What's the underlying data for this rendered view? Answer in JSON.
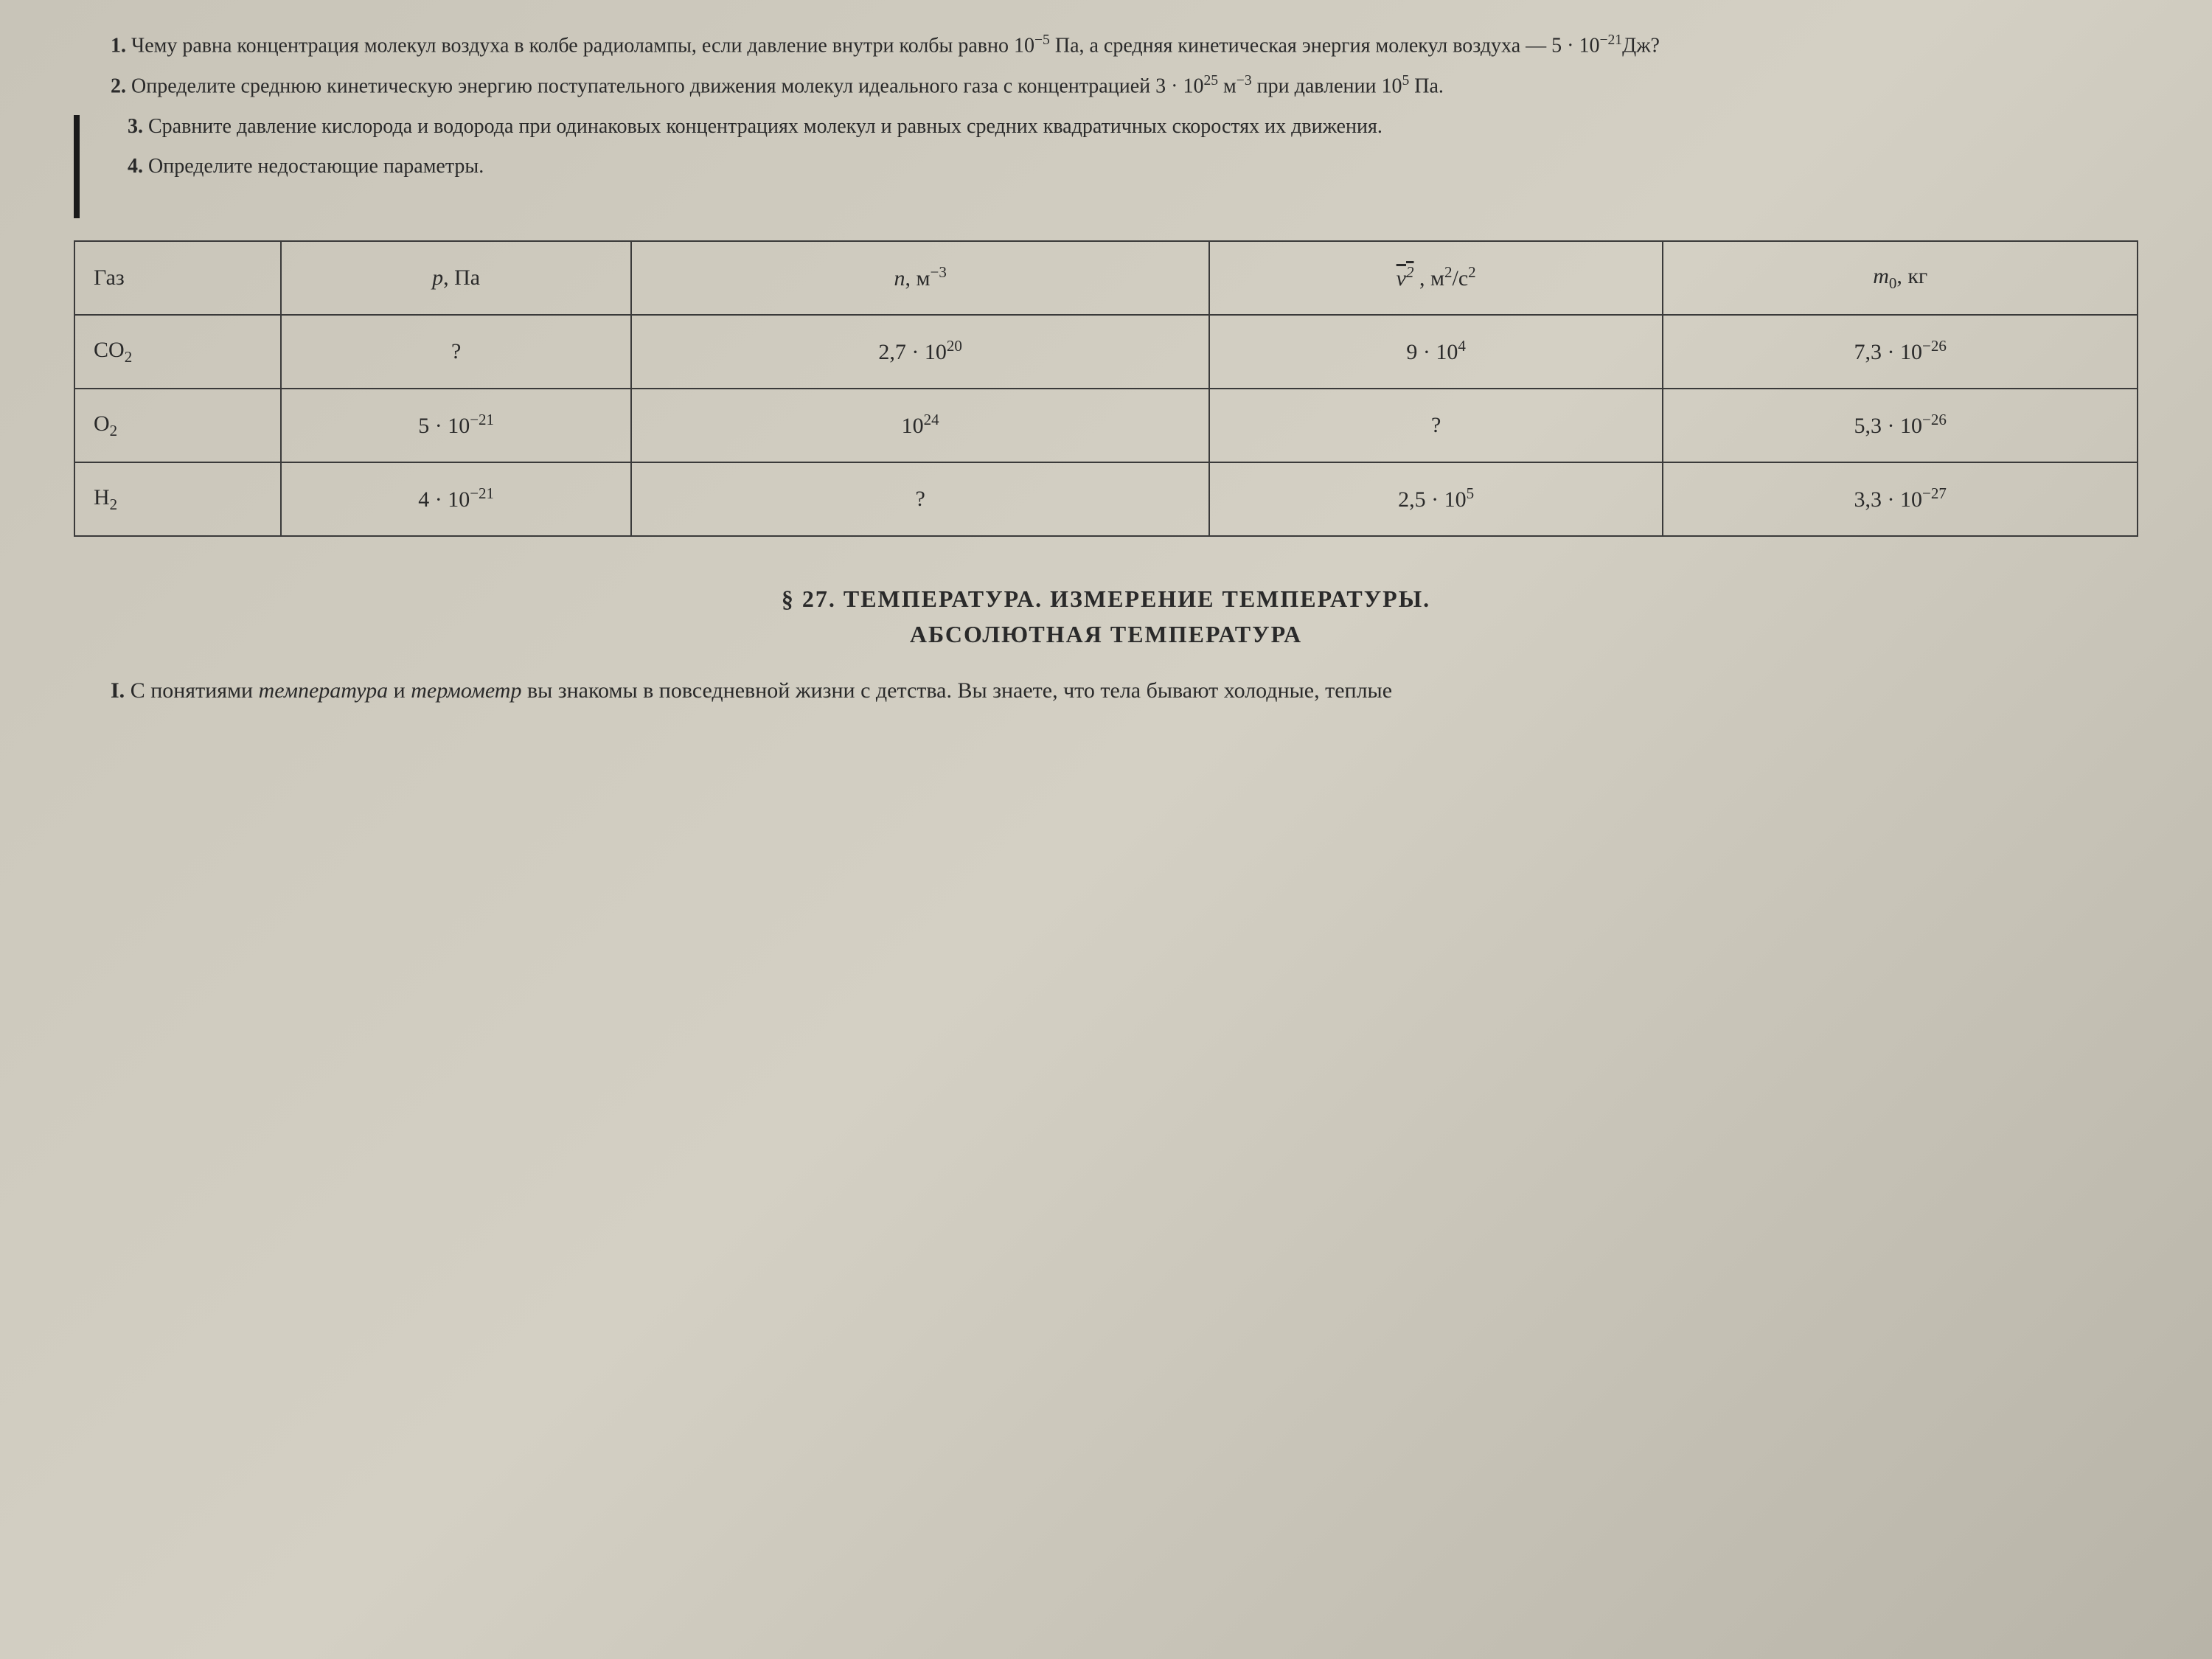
{
  "problems": {
    "p1": {
      "number": "1.",
      "text_before": "Чему равна концентрация молекул воздуха в колбе радиолампы, если давление внутри колбы равно 10",
      "exp1": "−5",
      "text_mid1": " Па, а средняя кинетическая энергия молекул воздуха — 5 · 10",
      "exp2": "−21",
      "text_after": "Дж?"
    },
    "p2": {
      "number": "2.",
      "text_before": "Определите среднюю кинетическую энергию поступательного движения молекул идеального газа с концентрацией 3 · 10",
      "exp1": "25",
      "text_mid": " м",
      "exp2": "−3",
      "text_mid2": " при давлении 10",
      "exp3": "5",
      "text_after": " Па."
    },
    "p3": {
      "number": "3.",
      "text": "Сравните давление кислорода и водорода при одинаковых концентрациях молекул и равных средних квадратичных скоростях их движения."
    },
    "p4": {
      "number": "4.",
      "text": "Определите недостающие параметры."
    }
  },
  "table": {
    "headers": {
      "gas": "Газ",
      "p_label": "p",
      "p_unit": ", Па",
      "n_label": "n",
      "n_unit": ", м",
      "n_exp": "−3",
      "v_label": "v",
      "v_sup": "2",
      "v_unit": " , м",
      "v_sup2": "2",
      "v_unit2": "/с",
      "v_sup3": "2",
      "m_label": "m",
      "m_sub": "0",
      "m_unit": ", кг"
    },
    "rows": [
      {
        "gas": "CO",
        "gas_sub": "2",
        "p": "?",
        "n_base": "2,7 · 10",
        "n_exp": "20",
        "v_base": "9 · 10",
        "v_exp": "4",
        "m_base": "7,3 · 10",
        "m_exp": "−26"
      },
      {
        "gas": "O",
        "gas_sub": "2",
        "p_base": "5 · 10",
        "p_exp": "−21",
        "n_base": "10",
        "n_exp": "24",
        "v": "?",
        "m_base": "5,3 · 10",
        "m_exp": "−26"
      },
      {
        "gas": "H",
        "gas_sub": "2",
        "p_base": "4 · 10",
        "p_exp": "−21",
        "n": "?",
        "v_base": "2,5 · 10",
        "v_exp": "5",
        "m_base": "3,3 · 10",
        "m_exp": "−27"
      }
    ]
  },
  "section": {
    "prefix": "§ 27.",
    "title_line1": "ТЕМПЕРАТУРА. ИЗМЕРЕНИЕ ТЕМПЕРАТУРЫ.",
    "title_line2": "АБСОЛЮТНАЯ ТЕМПЕРАТУРА"
  },
  "body": {
    "number": "I.",
    "text_before": "С понятиями ",
    "italic1": "температура",
    "text_mid1": " и ",
    "italic2": "термометр",
    "text_mid2": " вы знакомы в повсе­дневной жизни с детства. Вы знаете, что тела бывают холодные, теплые",
    "text_fragment": "температура"
  },
  "colors": {
    "text": "#2a2a2a",
    "border": "#3a3a3a",
    "background": "#c8c4b8"
  },
  "typography": {
    "body_font_size": 28,
    "table_font_size": 30,
    "section_title_size": 32,
    "font_family": "Times New Roman"
  }
}
